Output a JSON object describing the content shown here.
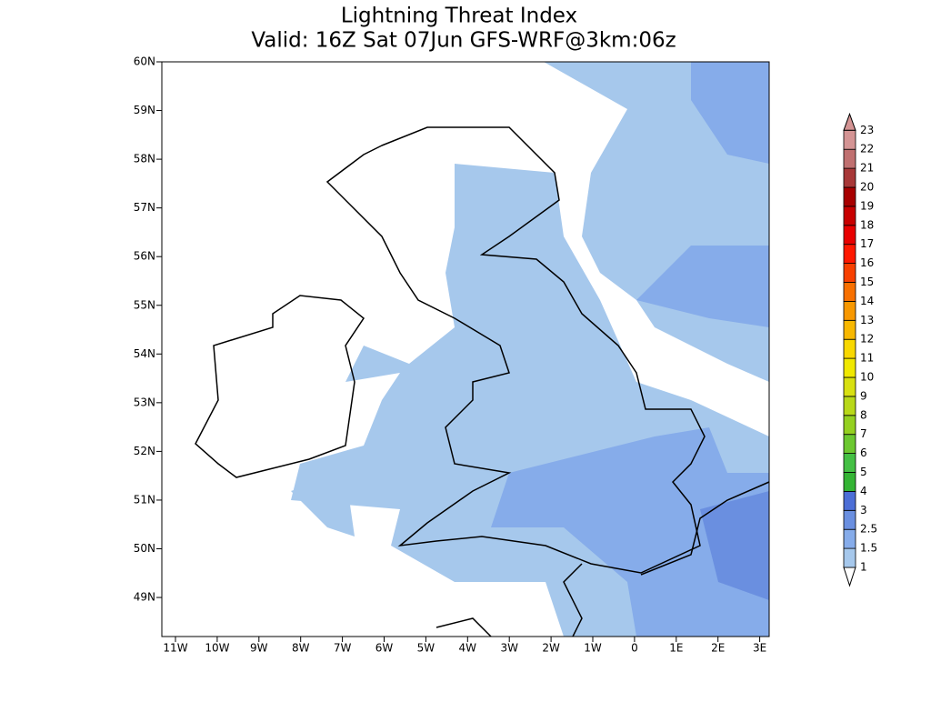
{
  "title": [
    "Lightning Threat Index",
    "Valid: 16Z Sat 07Jun GFS-WRF@3km:06z"
  ],
  "lat_labels": [
    "60N",
    "59N",
    "58N",
    "57N",
    "56N",
    "55N",
    "54N",
    "53N",
    "52N",
    "51N",
    "50N",
    "49N"
  ],
  "lon_labels": [
    "11W",
    "10W",
    "9W",
    "8W",
    "7W",
    "6W",
    "5W",
    "4W",
    "3W",
    "2W",
    "1W",
    "0",
    "1E",
    "2E",
    "3E"
  ],
  "colorbar": {
    "levels": [
      1,
      1.5,
      2.5,
      3,
      4,
      5,
      6,
      7,
      8,
      9,
      10,
      11,
      12,
      13,
      14,
      15,
      16,
      17,
      18,
      19,
      20,
      21,
      22,
      23
    ],
    "colors": [
      "#a6c8ec",
      "#86acea",
      "#6a8fe0",
      "#4c6ed6",
      "#34b434",
      "#44c044",
      "#6cc830",
      "#94d020",
      "#b8d818",
      "#d8e010",
      "#f0e800",
      "#f8d800",
      "#f8b800",
      "#f89800",
      "#f87000",
      "#f84000",
      "#ff1800",
      "#e80000",
      "#c80000",
      "#a80000",
      "#a83838",
      "#c07070",
      "#d49494"
    ]
  }
}
